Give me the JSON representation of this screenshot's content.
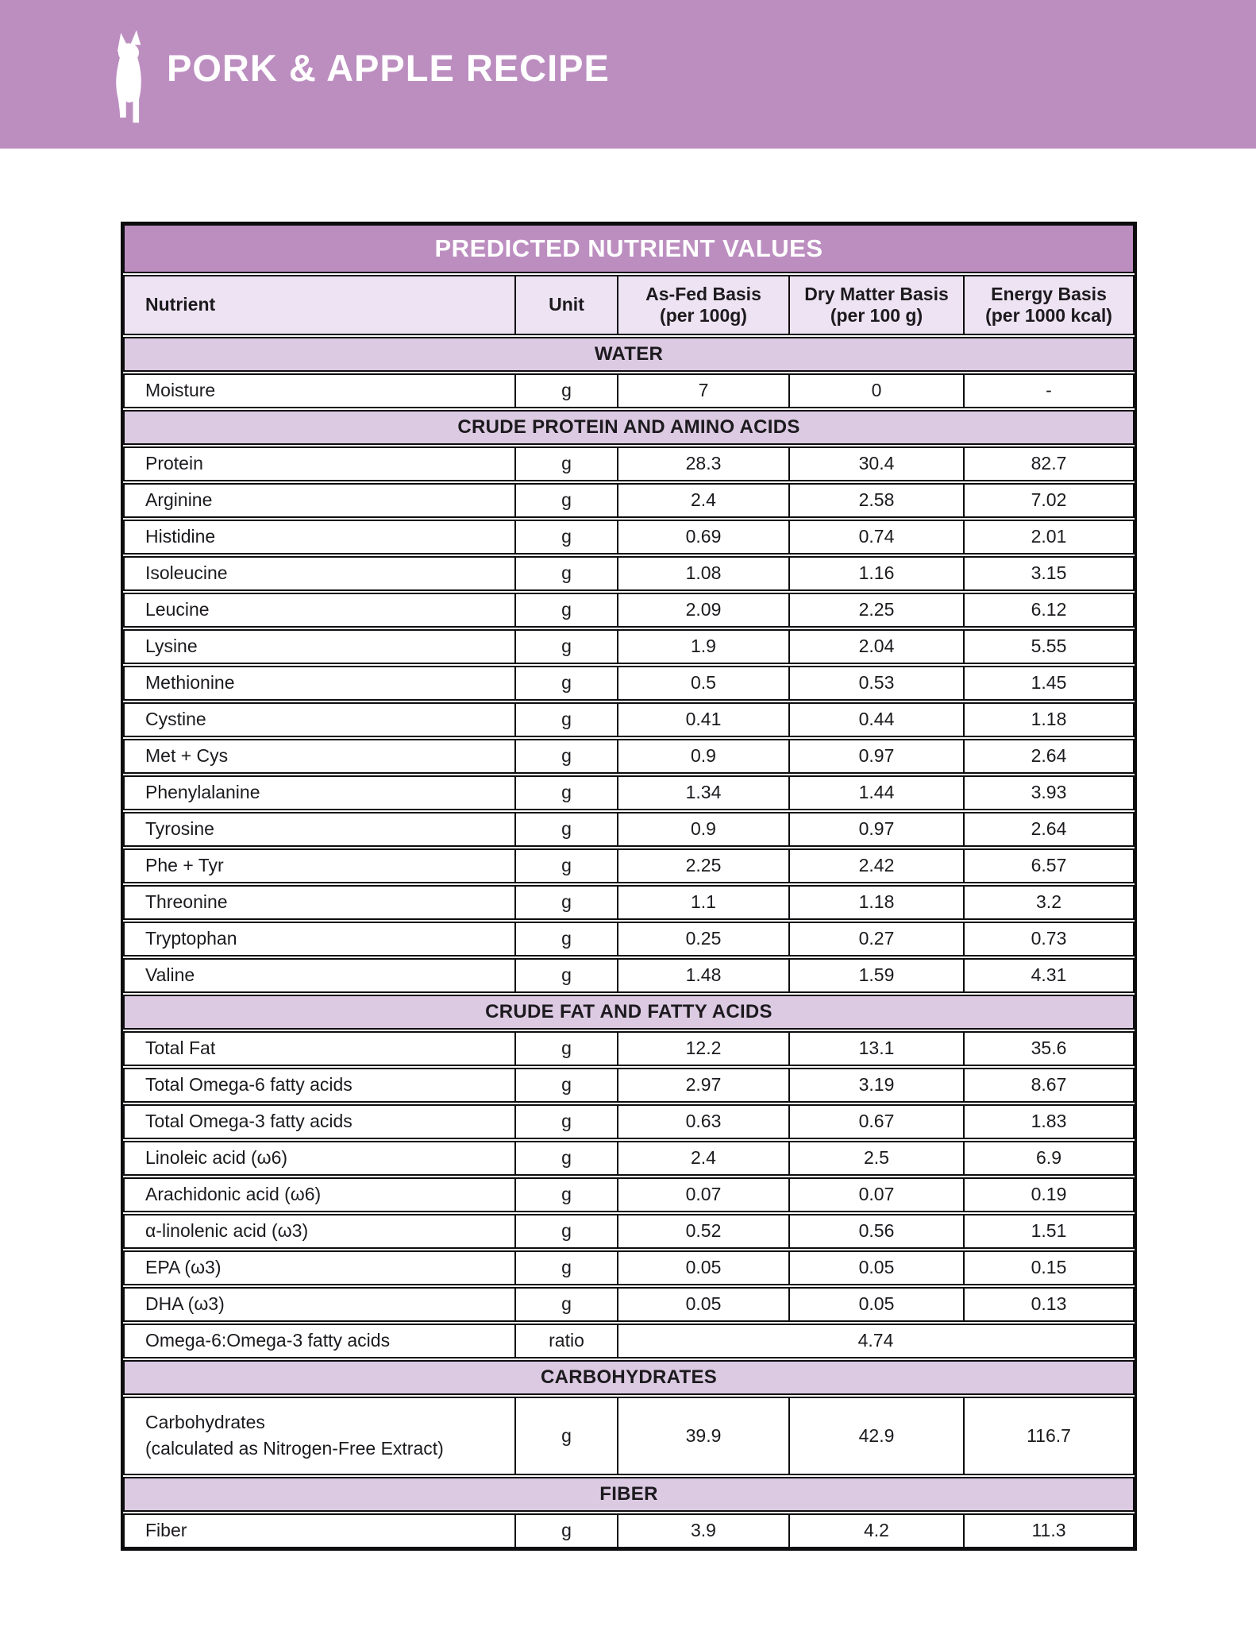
{
  "header": {
    "title": "PORK & APPLE RECIPE",
    "icon": "dog-silhouette-icon",
    "background_color": "#bc8ec0",
    "text_color": "#ffffff"
  },
  "table": {
    "title": "PREDICTED NUTRIENT VALUES",
    "columns": [
      "Nutrient",
      "Unit",
      "As-Fed Basis\n(per 100g)",
      "Dry Matter Basis\n(per 100 g)",
      "Energy Basis\n(per 1000 kcal)"
    ],
    "colors": {
      "title_bg": "#bc8ec0",
      "column_header_bg": "#eee3f2",
      "section_bg": "#dccae2",
      "border": "#0d0c0e"
    },
    "sections": [
      {
        "name": "WATER",
        "rows": [
          [
            "Moisture",
            "g",
            "7",
            "0",
            "-"
          ]
        ]
      },
      {
        "name": "CRUDE PROTEIN AND AMINO ACIDS",
        "rows": [
          [
            "Protein",
            "g",
            "28.3",
            "30.4",
            "82.7"
          ],
          [
            "Arginine",
            "g",
            "2.4",
            "2.58",
            "7.02"
          ],
          [
            "Histidine",
            "g",
            "0.69",
            "0.74",
            "2.01"
          ],
          [
            "Isoleucine",
            "g",
            "1.08",
            "1.16",
            "3.15"
          ],
          [
            "Leucine",
            "g",
            "2.09",
            "2.25",
            "6.12"
          ],
          [
            "Lysine",
            "g",
            "1.9",
            "2.04",
            "5.55"
          ],
          [
            "Methionine",
            "g",
            "0.5",
            "0.53",
            "1.45"
          ],
          [
            "Cystine",
            "g",
            "0.41",
            "0.44",
            "1.18"
          ],
          [
            "Met + Cys",
            "g",
            "0.9",
            "0.97",
            "2.64"
          ],
          [
            "Phenylalanine",
            "g",
            "1.34",
            "1.44",
            "3.93"
          ],
          [
            "Tyrosine",
            "g",
            "0.9",
            "0.97",
            "2.64"
          ],
          [
            "Phe + Tyr",
            "g",
            "2.25",
            "2.42",
            "6.57"
          ],
          [
            "Threonine",
            "g",
            "1.1",
            "1.18",
            "3.2"
          ],
          [
            "Tryptophan",
            "g",
            "0.25",
            "0.27",
            "0.73"
          ],
          [
            "Valine",
            "g",
            "1.48",
            "1.59",
            "4.31"
          ]
        ]
      },
      {
        "name": "CRUDE FAT AND FATTY ACIDS",
        "rows": [
          [
            "Total Fat",
            "g",
            "12.2",
            "13.1",
            "35.6"
          ],
          [
            "Total Omega-6 fatty acids",
            "g",
            "2.97",
            "3.19",
            "8.67"
          ],
          [
            "Total Omega-3 fatty acids",
            "g",
            "0.63",
            "0.67",
            "1.83"
          ],
          [
            "Linoleic acid (ω6)",
            "g",
            "2.4",
            "2.5",
            "6.9"
          ],
          [
            "Arachidonic acid (ω6)",
            "g",
            "0.07",
            "0.07",
            "0.19"
          ],
          [
            "α-linolenic acid (ω3)",
            "g",
            "0.52",
            "0.56",
            "1.51"
          ],
          [
            "EPA (ω3)",
            "g",
            "0.05",
            "0.05",
            "0.15"
          ],
          [
            "DHA (ω3)",
            "g",
            "0.05",
            "0.05",
            "0.13"
          ],
          {
            "label": "Omega-6:Omega-3 fatty acids",
            "unit": "ratio",
            "merged_value": "4.74"
          }
        ]
      },
      {
        "name": "CARBOHYDRATES",
        "rows": [
          [
            "Carbohydrates\n(calculated as Nitrogen-Free Extract)",
            "g",
            "39.9",
            "42.9",
            "116.7"
          ]
        ]
      },
      {
        "name": "FIBER",
        "rows": [
          [
            "Fiber",
            "g",
            "3.9",
            "4.2",
            "11.3"
          ]
        ]
      }
    ]
  }
}
